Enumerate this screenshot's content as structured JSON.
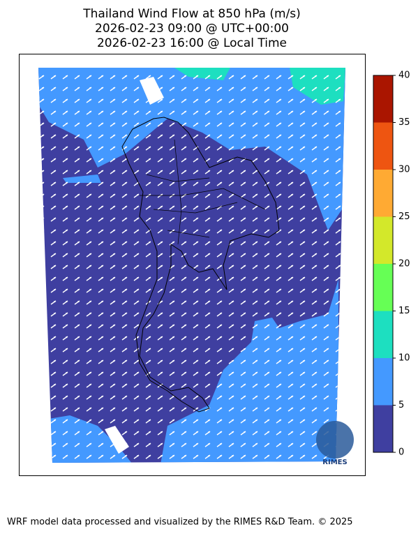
{
  "title": [
    "Thailand Wind Flow at 850 hPa (m/s)",
    "2026-02-23 09:00 @ UTC+00:00",
    "2026-02-23 16:00 @ Local Time"
  ],
  "colorbar": {
    "ticks": [
      0,
      5,
      10,
      15,
      20,
      25,
      30,
      35,
      40
    ],
    "colors": [
      "#3f3fa0",
      "#4499ff",
      "#1ddfc0",
      "#66ff55",
      "#d3e82a",
      "#ffaa33",
      "#ee5511",
      "#aa1500"
    ]
  },
  "logo": "RIMES",
  "footer": "WRF model data processed and visualized by the RIMES R&D Team. © 2025"
}
